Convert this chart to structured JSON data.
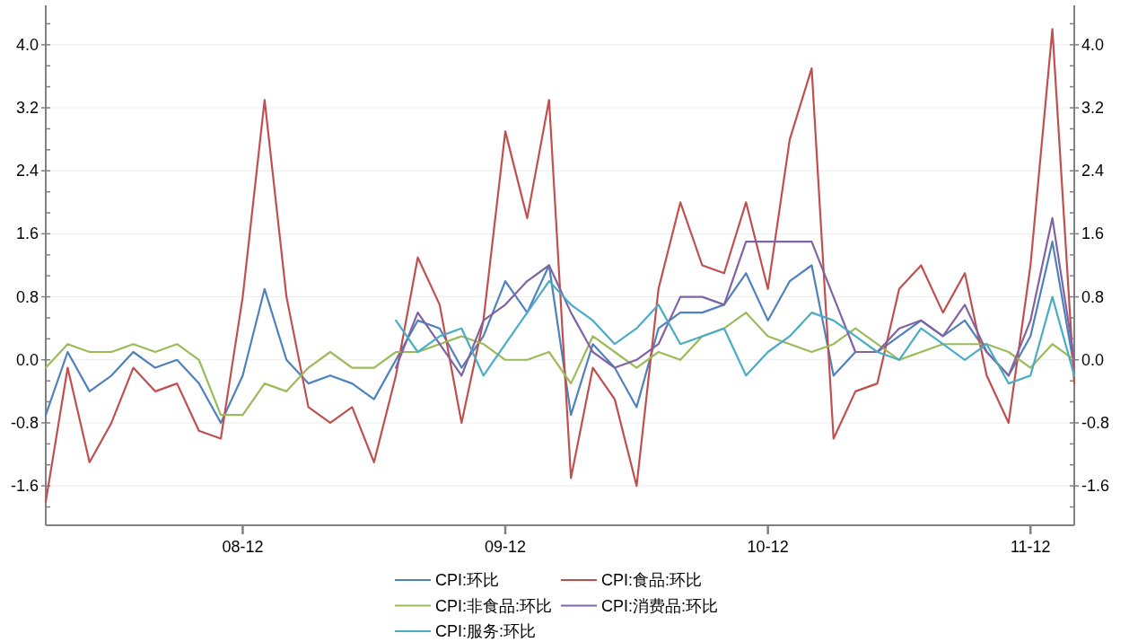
{
  "chart_data": {
    "type": "line",
    "categories": [
      null,
      null,
      null,
      null,
      null,
      null,
      null,
      null,
      null,
      "08-12",
      null,
      null,
      null,
      null,
      null,
      null,
      null,
      null,
      null,
      null,
      null,
      "09-12",
      null,
      null,
      null,
      null,
      null,
      null,
      null,
      null,
      null,
      null,
      null,
      "10-12",
      null,
      null,
      null,
      null,
      null,
      null,
      null,
      null,
      null,
      null,
      null,
      "11-12",
      null,
      null
    ],
    "series": [
      {
        "name": "CPI:环比",
        "color": "#4f81bd",
        "values": [
          -0.7,
          0.1,
          -0.4,
          -0.2,
          0.1,
          -0.1,
          0.0,
          -0.3,
          -0.8,
          -0.2,
          0.9,
          0.0,
          -0.3,
          -0.2,
          -0.3,
          -0.5,
          0.0,
          0.5,
          0.4,
          -0.1,
          0.3,
          1.0,
          0.6,
          1.2,
          -0.7,
          0.2,
          -0.1,
          -0.6,
          0.4,
          0.6,
          0.6,
          0.7,
          1.1,
          0.5,
          1.0,
          1.2,
          -0.2,
          0.1,
          0.1,
          0.3,
          0.5,
          0.3,
          0.5,
          0.1,
          -0.2,
          0.3,
          1.5,
          -0.1
        ]
      },
      {
        "name": "CPI:食品:环比",
        "color": "#c0504d",
        "values": [
          -1.8,
          -0.1,
          -1.3,
          -0.8,
          -0.1,
          -0.4,
          -0.3,
          -0.9,
          -1.0,
          0.8,
          3.3,
          0.8,
          -0.6,
          -0.8,
          -0.6,
          -1.3,
          -0.2,
          1.3,
          0.7,
          -0.8,
          0.5,
          2.9,
          1.8,
          3.3,
          -1.5,
          -0.1,
          -0.5,
          -1.6,
          0.9,
          2.0,
          1.2,
          1.1,
          2.0,
          0.9,
          2.8,
          3.7,
          -1.0,
          -0.4,
          -0.3,
          0.9,
          1.2,
          0.6,
          1.1,
          -0.2,
          -0.8,
          1.2,
          4.2,
          -0.3
        ]
      },
      {
        "name": "CPI:非食品:环比",
        "color": "#9bbb59",
        "values": [
          -0.1,
          0.2,
          0.1,
          0.1,
          0.2,
          0.1,
          0.2,
          0.0,
          -0.7,
          -0.7,
          -0.3,
          -0.4,
          -0.1,
          0.1,
          -0.1,
          -0.1,
          0.1,
          0.1,
          0.2,
          0.3,
          0.2,
          0.0,
          0.0,
          0.1,
          -0.3,
          0.3,
          0.1,
          -0.1,
          0.1,
          0.0,
          0.3,
          0.4,
          0.6,
          0.3,
          0.2,
          0.1,
          0.2,
          0.4,
          0.2,
          0.0,
          0.1,
          0.2,
          0.2,
          0.2,
          0.1,
          -0.1,
          0.2,
          0.0
        ]
      },
      {
        "name": "CPI:消费品:环比",
        "color": "#8064a2",
        "values": [
          null,
          null,
          null,
          null,
          null,
          null,
          null,
          null,
          null,
          null,
          null,
          null,
          null,
          null,
          null,
          null,
          -0.1,
          0.6,
          0.2,
          -0.2,
          0.5,
          0.7,
          1.0,
          1.2,
          0.6,
          0.1,
          -0.1,
          0.0,
          0.2,
          0.8,
          0.8,
          0.7,
          1.5,
          1.5,
          1.5,
          1.5,
          0.8,
          0.1,
          0.1,
          0.4,
          0.5,
          0.3,
          0.7,
          0.1,
          -0.2,
          0.5,
          1.8,
          0.0
        ]
      },
      {
        "name": "CPI:服务:环比",
        "color": "#4bacc6",
        "values": [
          null,
          null,
          null,
          null,
          null,
          null,
          null,
          null,
          null,
          null,
          null,
          null,
          null,
          null,
          null,
          null,
          0.5,
          0.1,
          0.3,
          0.4,
          -0.2,
          0.2,
          0.6,
          1.0,
          0.7,
          0.5,
          0.2,
          0.4,
          0.7,
          0.2,
          0.3,
          0.4,
          -0.2,
          0.1,
          0.3,
          0.6,
          0.5,
          0.3,
          0.1,
          0.0,
          0.4,
          0.2,
          0.0,
          0.2,
          -0.3,
          -0.2,
          0.8,
          -0.2
        ]
      }
    ],
    "ylim": [
      -2.1,
      4.5
    ],
    "yticks": [
      {
        "value": -1.867,
        "label": null
      },
      {
        "value": -1.6,
        "label": "-1.6"
      },
      {
        "value": -1.333,
        "label": null
      },
      {
        "value": -1.067,
        "label": null
      },
      {
        "value": -0.8,
        "label": "-0.8"
      },
      {
        "value": -0.533,
        "label": null
      },
      {
        "value": -0.267,
        "label": null
      },
      {
        "value": 0,
        "label": "0.0"
      },
      {
        "value": 0.267,
        "label": null
      },
      {
        "value": 0.533,
        "label": null
      },
      {
        "value": 0.8,
        "label": "0.8"
      },
      {
        "value": 1.067,
        "label": null
      },
      {
        "value": 1.333,
        "label": null
      },
      {
        "value": 1.6,
        "label": "1.6"
      },
      {
        "value": 1.867,
        "label": null
      },
      {
        "value": 2.133,
        "label": null
      },
      {
        "value": 2.4,
        "label": "2.4"
      },
      {
        "value": 2.667,
        "label": null
      },
      {
        "value": 2.933,
        "label": null
      },
      {
        "value": 3.2,
        "label": "3.2"
      },
      {
        "value": 3.467,
        "label": null
      },
      {
        "value": 3.733,
        "label": null
      },
      {
        "value": 4.0,
        "label": "4.0"
      },
      {
        "value": 4.267,
        "label": null
      }
    ],
    "y2lim": [
      -2.1,
      4.5
    ],
    "y2ticks": [
      {
        "value": -1.867,
        "label": null
      },
      {
        "value": -1.6,
        "label": "-1.6"
      },
      {
        "value": -1.333,
        "label": null
      },
      {
        "value": -1.067,
        "label": null
      },
      {
        "value": -0.8,
        "label": "-0.8"
      },
      {
        "value": -0.533,
        "label": null
      },
      {
        "value": -0.267,
        "label": null
      },
      {
        "value": 0,
        "label": "0.0"
      },
      {
        "value": 0.267,
        "label": null
      },
      {
        "value": 0.533,
        "label": null
      },
      {
        "value": 0.8,
        "label": "0.8"
      },
      {
        "value": 1.067,
        "label": null
      },
      {
        "value": 1.333,
        "label": null
      },
      {
        "value": 1.6,
        "label": "1.6"
      },
      {
        "value": 1.867,
        "label": null
      },
      {
        "value": 2.133,
        "label": null
      },
      {
        "value": 2.4,
        "label": "2.4"
      },
      {
        "value": 2.667,
        "label": null
      },
      {
        "value": 2.933,
        "label": null
      },
      {
        "value": 3.2,
        "label": "3.2"
      },
      {
        "value": 3.467,
        "label": null
      },
      {
        "value": 3.733,
        "label": null
      },
      {
        "value": 4.0,
        "label": "4.0"
      },
      {
        "value": 4.267,
        "label": null
      }
    ],
    "grid": "y",
    "legend": "bottom"
  }
}
